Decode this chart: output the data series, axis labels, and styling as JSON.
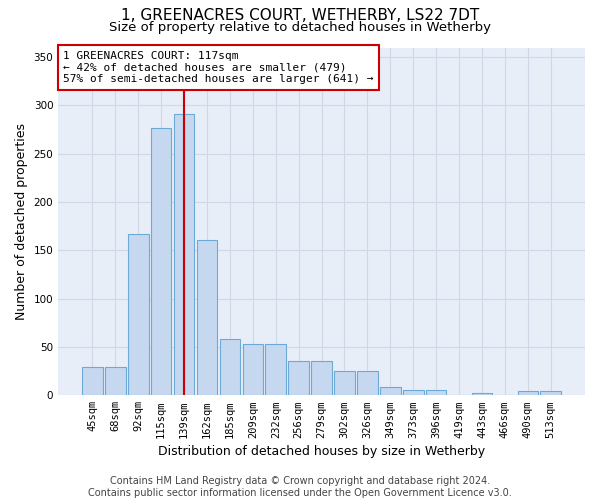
{
  "title1": "1, GREENACRES COURT, WETHERBY, LS22 7DT",
  "title2": "Size of property relative to detached houses in Wetherby",
  "xlabel": "Distribution of detached houses by size in Wetherby",
  "ylabel": "Number of detached properties",
  "categories": [
    "45sqm",
    "68sqm",
    "92sqm",
    "115sqm",
    "139sqm",
    "162sqm",
    "185sqm",
    "209sqm",
    "232sqm",
    "256sqm",
    "279sqm",
    "302sqm",
    "326sqm",
    "349sqm",
    "373sqm",
    "396sqm",
    "419sqm",
    "443sqm",
    "466sqm",
    "490sqm",
    "513sqm"
  ],
  "values": [
    29,
    29,
    167,
    277,
    291,
    161,
    58,
    53,
    53,
    35,
    35,
    25,
    25,
    9,
    5,
    5,
    0,
    2,
    0,
    4,
    4
  ],
  "bar_color": "#c5d8f0",
  "bar_edge_color": "#6aaad4",
  "red_line_index": 4,
  "annotation_text": "1 GREENACRES COURT: 117sqm\n← 42% of detached houses are smaller (479)\n57% of semi-detached houses are larger (641) →",
  "annotation_box_color": "#ffffff",
  "annotation_box_edge_color": "#cc0000",
  "red_line_color": "#cc0000",
  "grid_color": "#d0d8e8",
  "background_color": "#e8eef8",
  "footer_text": "Contains HM Land Registry data © Crown copyright and database right 2024.\nContains public sector information licensed under the Open Government Licence v3.0.",
  "ylim": [
    0,
    360
  ],
  "yticks": [
    0,
    50,
    100,
    150,
    200,
    250,
    300,
    350
  ],
  "title1_fontsize": 11,
  "title2_fontsize": 9.5,
  "xlabel_fontsize": 9,
  "ylabel_fontsize": 9,
  "annotation_fontsize": 8,
  "tick_fontsize": 7.5,
  "footer_fontsize": 7
}
